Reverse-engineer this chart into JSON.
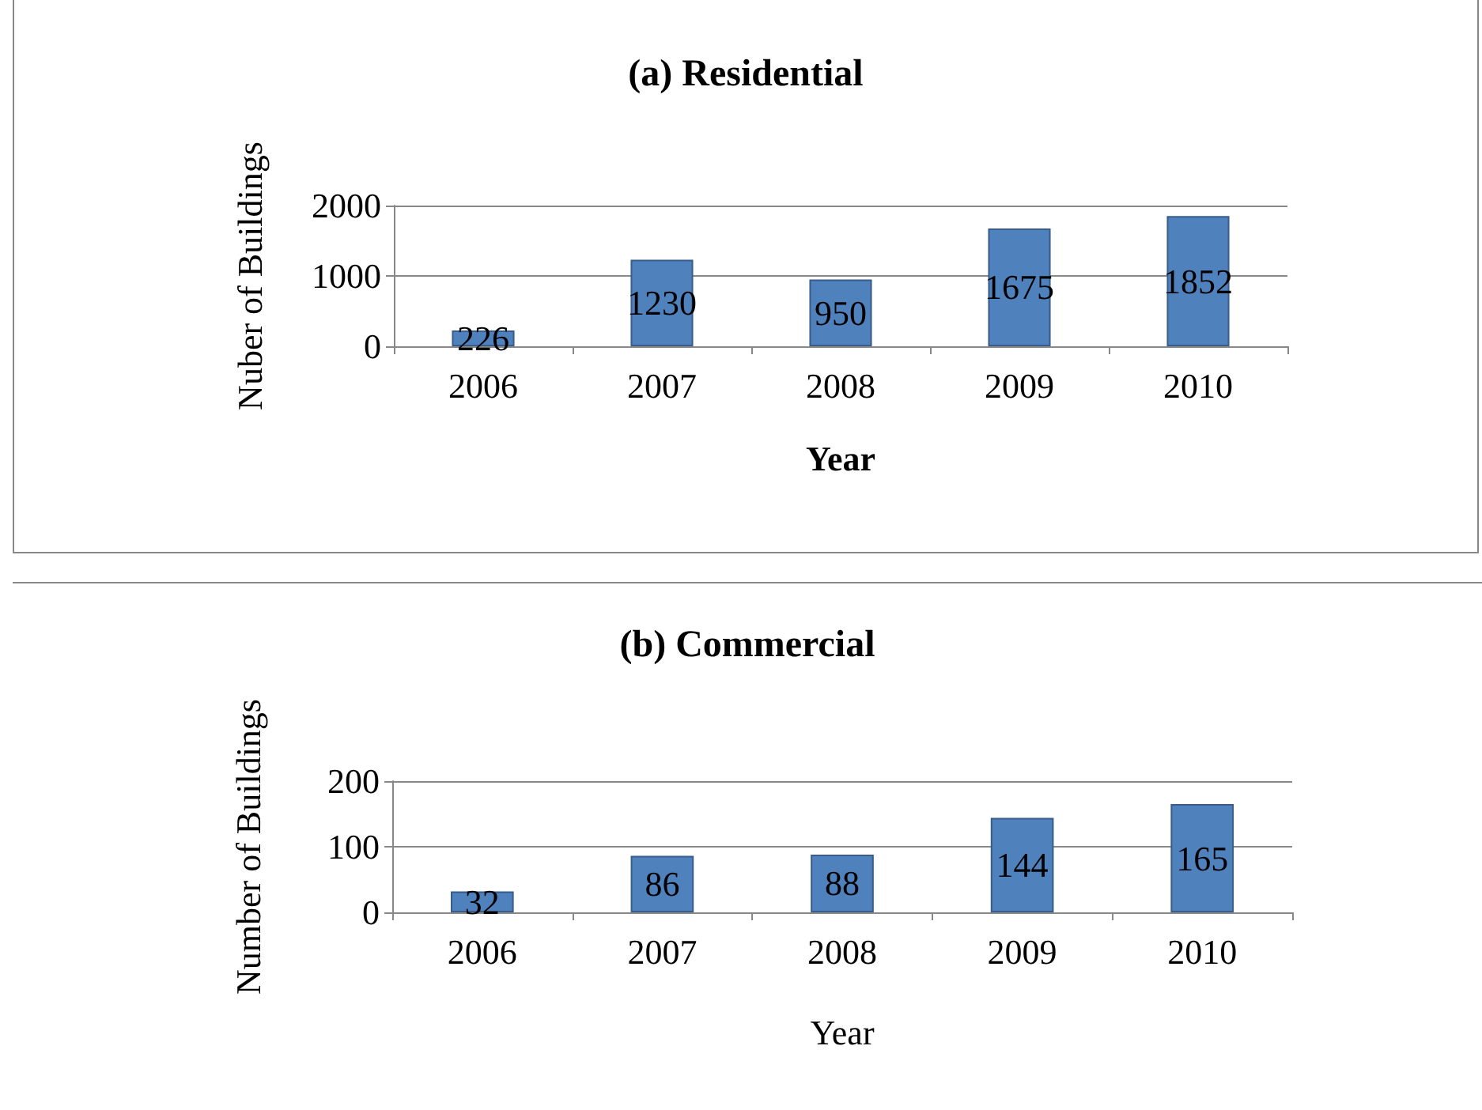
{
  "chart_data": [
    {
      "type": "bar",
      "title": "(a) Residential",
      "xlabel": "Year",
      "ylabel": "Nuber of Buildings",
      "categories": [
        "2006",
        "2007",
        "2008",
        "2009",
        "2010"
      ],
      "values": [
        226,
        1230,
        950,
        1675,
        1852
      ],
      "color": "#4f81bd",
      "ylim": [
        0,
        2000
      ],
      "yticks": [
        0,
        1000,
        2000
      ],
      "grid": "y",
      "data_labels": true
    },
    {
      "type": "bar",
      "title": "(b) Commercial",
      "xlabel": "Year",
      "ylabel": "Number of Buildings",
      "categories": [
        "2006",
        "2007",
        "2008",
        "2009",
        "2010"
      ],
      "values": [
        32,
        86,
        88,
        144,
        165
      ],
      "color": "#4f81bd",
      "ylim": [
        0,
        200
      ],
      "yticks": [
        0,
        100,
        200
      ],
      "grid": "y",
      "data_labels": true
    }
  ]
}
